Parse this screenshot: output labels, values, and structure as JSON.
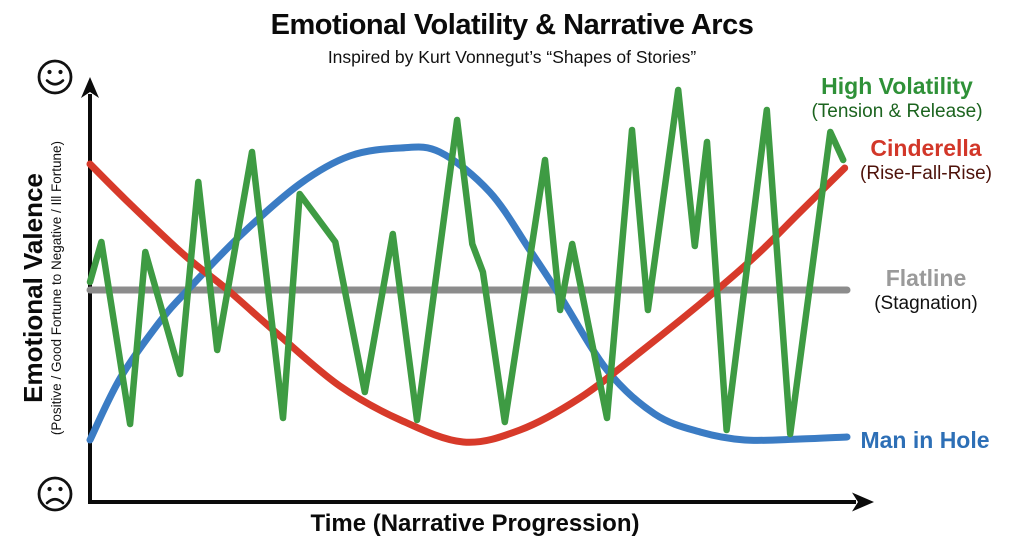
{
  "header": {
    "title": "Emotional Volatility & Narrative Arcs",
    "subtitle": "Inspired by Kurt Vonnegut’s “Shapes of Stories”"
  },
  "axes": {
    "x_label": "Time (Narrative Progression)",
    "y_label": "Emotional Valence",
    "y_sublabel": "(Positive / Good Fortune to Negative / Ill Fortune)",
    "axis_color": "#0b0b0b"
  },
  "icons": {
    "y_top": {
      "name": "happy-face-icon",
      "glyph": "☺"
    },
    "y_bottom": {
      "name": "sad-face-icon",
      "glyph": "☹"
    }
  },
  "chart_data": {
    "type": "line",
    "title": "Emotional Volatility & Narrative Arcs",
    "subtitle": "Inspired by Kurt Vonnegut’s “Shapes of Stories”",
    "xlabel": "Time (Narrative Progression)",
    "ylabel": "Emotional Valence (Positive / Good Fortune to Negative / Ill Fortune)",
    "x_range": [
      0,
      100
    ],
    "y_range": [
      -1.1,
      1.1
    ],
    "grid": false,
    "legend_position": "right-annotations",
    "series": [
      {
        "id": "flatline",
        "name": "Flatline",
        "annotation": "(Stagnation)",
        "color": "#8c8c8c",
        "label_color": "#9a9a9a",
        "annotation_color": "#111111",
        "line_style": "straight",
        "stroke_width": 7,
        "x": [
          0,
          100
        ],
        "y": [
          0,
          0
        ]
      },
      {
        "id": "man-in-hole",
        "name": "Man in Hole",
        "color": "#3b7cc4",
        "label_color": "#2d6fb6",
        "line_style": "smooth",
        "stroke_width": 7,
        "x": [
          0,
          4,
          9.2,
          12.9,
          19.8,
          27.7,
          34.3,
          41,
          46.2,
          52.8,
          58.1,
          62.1,
          68.3,
          74.6,
          80.6,
          86.5,
          93.8,
          100
        ],
        "y": [
          -0.75,
          -0.44,
          -0.16,
          0,
          0.27,
          0.53,
          0.67,
          0.71,
          0.69,
          0.49,
          0.2,
          -0.03,
          -0.4,
          -0.62,
          -0.71,
          -0.75,
          -0.745,
          -0.735
        ]
      },
      {
        "id": "cinderella",
        "name": "Cinderella",
        "annotation": "(Rise-Fall-Rise)",
        "color": "#d73a2a",
        "label_color": "#d23729",
        "annotation_color": "#4e120a",
        "line_style": "smooth",
        "stroke_width": 7,
        "x": [
          0,
          5.3,
          12.6,
          18.2,
          25.1,
          33,
          41,
          49.3,
          56.8,
          64.7,
          72.7,
          82.8,
          88.5,
          93.8,
          99.7
        ],
        "y": [
          0.63,
          0.43,
          0.17,
          0,
          -0.23,
          -0.48,
          -0.65,
          -0.76,
          -0.7,
          -0.54,
          -0.31,
          0,
          0.19,
          0.39,
          0.61
        ]
      },
      {
        "id": "high-volatility",
        "name": "High Volatility",
        "annotation": "(Tension & Release)",
        "color": "#3e9b43",
        "label_color": "#2f9138",
        "annotation_color": "#1c641f",
        "line_style": "straight",
        "stroke_width": 6.5,
        "x": [
          0,
          1.5,
          5.3,
          7.3,
          11.9,
          14.3,
          16.8,
          21.4,
          25.5,
          27.7,
          32.4,
          36.3,
          40,
          43.2,
          48.5,
          50.5,
          51.9,
          54.8,
          60.1,
          62.1,
          63.7,
          68.3,
          71.6,
          73.7,
          77.7,
          79.9,
          81.5,
          84.1,
          89.4,
          92.5,
          97.8,
          99.5
        ],
        "y": [
          0.04,
          0.24,
          -0.67,
          0.19,
          -0.42,
          0.54,
          -0.3,
          0.69,
          -0.64,
          0.48,
          0.24,
          -0.51,
          0.28,
          -0.65,
          0.85,
          0.23,
          0.09,
          -0.66,
          0.65,
          -0.1,
          0.23,
          -0.64,
          0.8,
          -0.1,
          1.0,
          0.22,
          0.74,
          -0.7,
          0.9,
          -0.72,
          0.79,
          0.65
        ]
      }
    ]
  }
}
